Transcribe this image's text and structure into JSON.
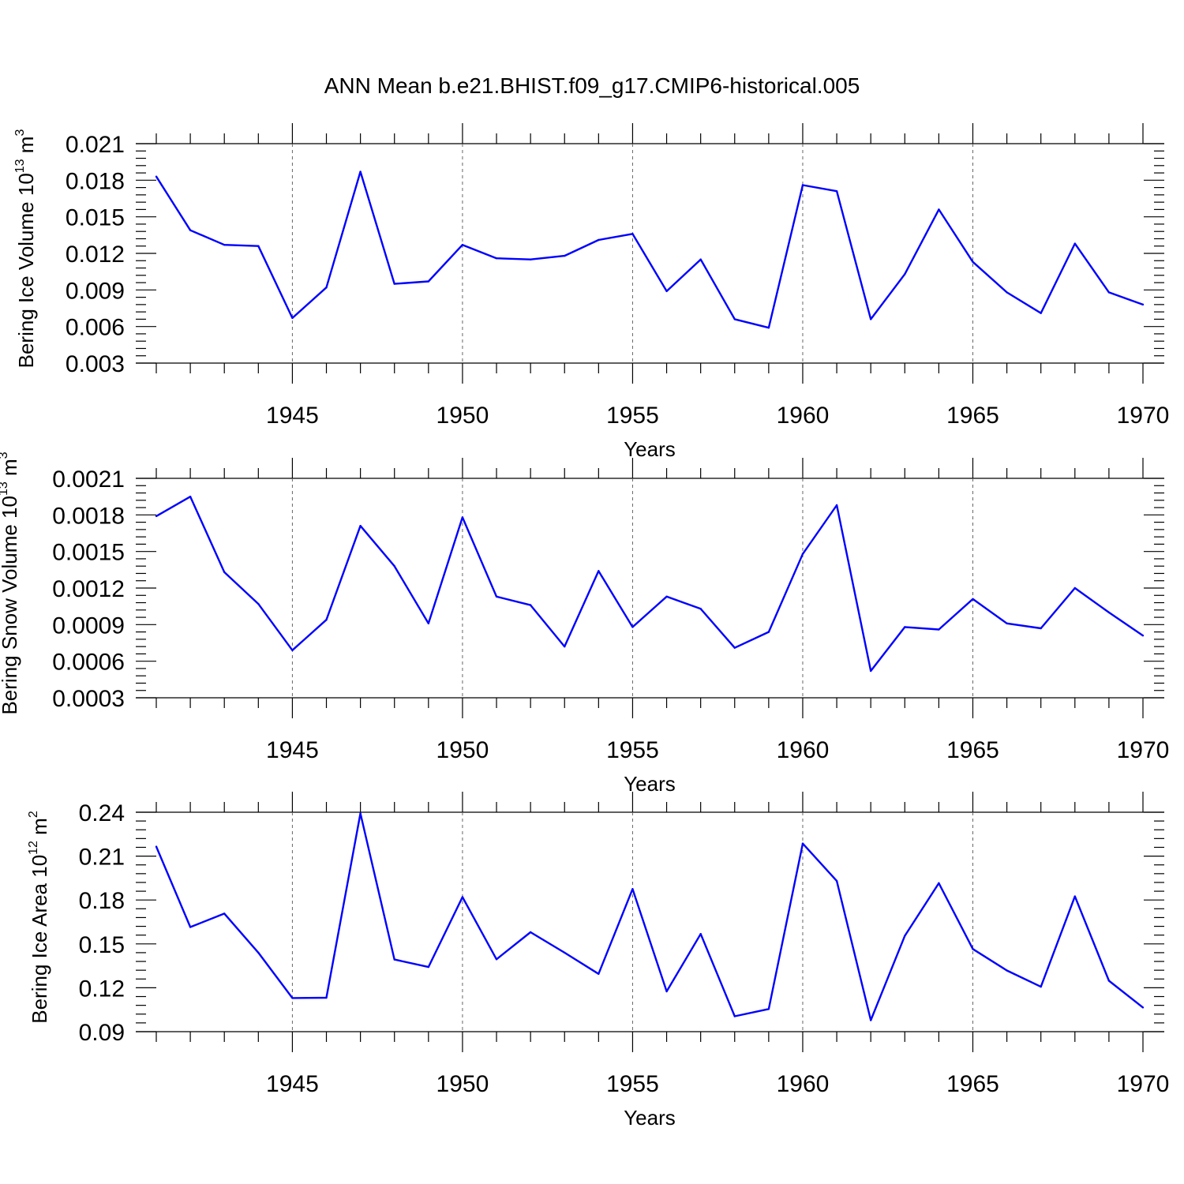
{
  "title": "ANN Mean b.e21.BHIST.f09_g17.CMIP6-historical.005",
  "colors": {
    "series": "#0000ff",
    "axis": "#000000",
    "grid": "#666666"
  },
  "chart_data": [
    {
      "type": "line",
      "xlabel": "Years",
      "ylabel": {
        "text": "Bering Ice Volume 10",
        "exp": "13",
        "unit": " m",
        "unit_exp": "3"
      },
      "xlim": [
        1941,
        1970
      ],
      "ylim": [
        0.003,
        0.021
      ],
      "yticks": [
        "0.003",
        "0.006",
        "0.009",
        "0.012",
        "0.015",
        "0.018",
        "0.021"
      ],
      "xticks": [
        1945,
        1950,
        1955,
        1960,
        1965,
        1970
      ],
      "grid": "x-major dashed",
      "x": [
        1941,
        1942,
        1943,
        1944,
        1945,
        1946,
        1947,
        1948,
        1949,
        1950,
        1951,
        1952,
        1953,
        1954,
        1955,
        1956,
        1957,
        1958,
        1959,
        1960,
        1961,
        1962,
        1963,
        1964,
        1965,
        1966,
        1967,
        1968,
        1969,
        1970
      ],
      "values": [
        0.0183,
        0.0139,
        0.0127,
        0.0126,
        0.0067,
        0.0092,
        0.0187,
        0.0095,
        0.0097,
        0.0127,
        0.0116,
        0.0115,
        0.0118,
        0.0131,
        0.0136,
        0.0089,
        0.0115,
        0.0066,
        0.0059,
        0.0176,
        0.0171,
        0.0066,
        0.0103,
        0.0156,
        0.0113,
        0.0088,
        0.0071,
        0.0128,
        0.0088,
        0.0078
      ]
    },
    {
      "type": "line",
      "xlabel": "Years",
      "ylabel": {
        "text": "Bering Snow Volume 10",
        "exp": "13",
        "unit": " m",
        "unit_exp": "3"
      },
      "xlim": [
        1941,
        1970
      ],
      "ylim": [
        0.0003,
        0.0021
      ],
      "yticks": [
        "0.0003",
        "0.0006",
        "0.0009",
        "0.0012",
        "0.0015",
        "0.0018",
        "0.0021"
      ],
      "xticks": [
        1945,
        1950,
        1955,
        1960,
        1965,
        1970
      ],
      "grid": "x-major dashed",
      "x": [
        1941,
        1942,
        1943,
        1944,
        1945,
        1946,
        1947,
        1948,
        1949,
        1950,
        1951,
        1952,
        1953,
        1954,
        1955,
        1956,
        1957,
        1958,
        1959,
        1960,
        1961,
        1962,
        1963,
        1964,
        1965,
        1966,
        1967,
        1968,
        1969,
        1970
      ],
      "values": [
        0.00179,
        0.00195,
        0.00133,
        0.00107,
        0.00069,
        0.00094,
        0.00171,
        0.00138,
        0.00091,
        0.00178,
        0.00113,
        0.00106,
        0.00072,
        0.00134,
        0.00088,
        0.00113,
        0.00103,
        0.00071,
        0.00084,
        0.00148,
        0.00188,
        0.00052,
        0.00088,
        0.00086,
        0.00111,
        0.00091,
        0.00087,
        0.0012,
        0.001,
        0.00081
      ]
    },
    {
      "type": "line",
      "xlabel": "Years",
      "ylabel": {
        "text": "Bering Ice Area 10",
        "exp": "12",
        "unit": " m",
        "unit_exp": "2"
      },
      "xlim": [
        1941,
        1970
      ],
      "ylim": [
        0.09,
        0.24
      ],
      "yticks": [
        "0.09",
        "0.12",
        "0.15",
        "0.18",
        "0.21",
        "0.24"
      ],
      "xticks": [
        1945,
        1950,
        1955,
        1960,
        1965,
        1970
      ],
      "grid": "x-major dashed",
      "x": [
        1941,
        1942,
        1943,
        1944,
        1945,
        1946,
        1947,
        1948,
        1949,
        1950,
        1951,
        1952,
        1953,
        1954,
        1955,
        1956,
        1957,
        1958,
        1959,
        1960,
        1961,
        1962,
        1963,
        1964,
        1965,
        1966,
        1967,
        1968,
        1969,
        1970
      ],
      "values": [
        0.2165,
        0.1615,
        0.1707,
        0.144,
        0.113,
        0.1132,
        0.2392,
        0.1393,
        0.1342,
        0.182,
        0.1395,
        0.158,
        0.144,
        0.1295,
        0.1875,
        0.1175,
        0.1568,
        0.1005,
        0.1055,
        0.2186,
        0.193,
        0.0978,
        0.1555,
        0.1915,
        0.1465,
        0.1318,
        0.1207,
        0.1825,
        0.1248,
        0.1065
      ]
    }
  ]
}
